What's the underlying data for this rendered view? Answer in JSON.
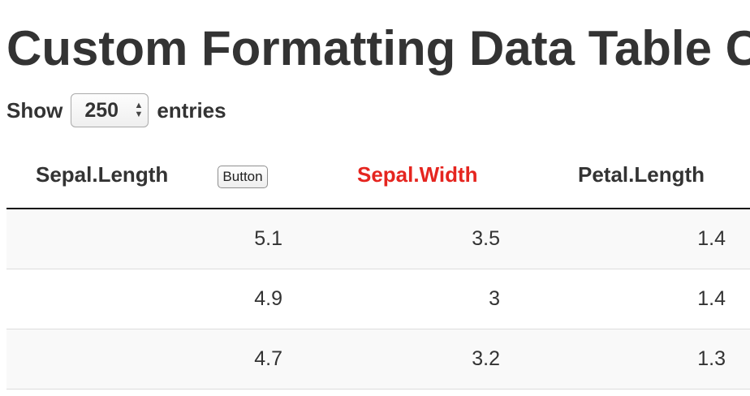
{
  "title": "Custom Formatting Data Table Co",
  "length_control": {
    "show_label": "Show",
    "selected": "250",
    "entries_label": "entries"
  },
  "table": {
    "headers": {
      "sepal_length": "Sepal.Length",
      "button_label": "Button",
      "sepal_width": "Sepal.Width",
      "petal_length": "Petal.Length"
    },
    "header_accent_color": "#e5251f",
    "rows": [
      {
        "sepal_length": "5.1",
        "sepal_width": "3.5",
        "petal_length": "1.4"
      },
      {
        "sepal_length": "4.9",
        "sepal_width": "3",
        "petal_length": "1.4"
      },
      {
        "sepal_length": "4.7",
        "sepal_width": "3.2",
        "petal_length": "1.3"
      }
    ]
  }
}
